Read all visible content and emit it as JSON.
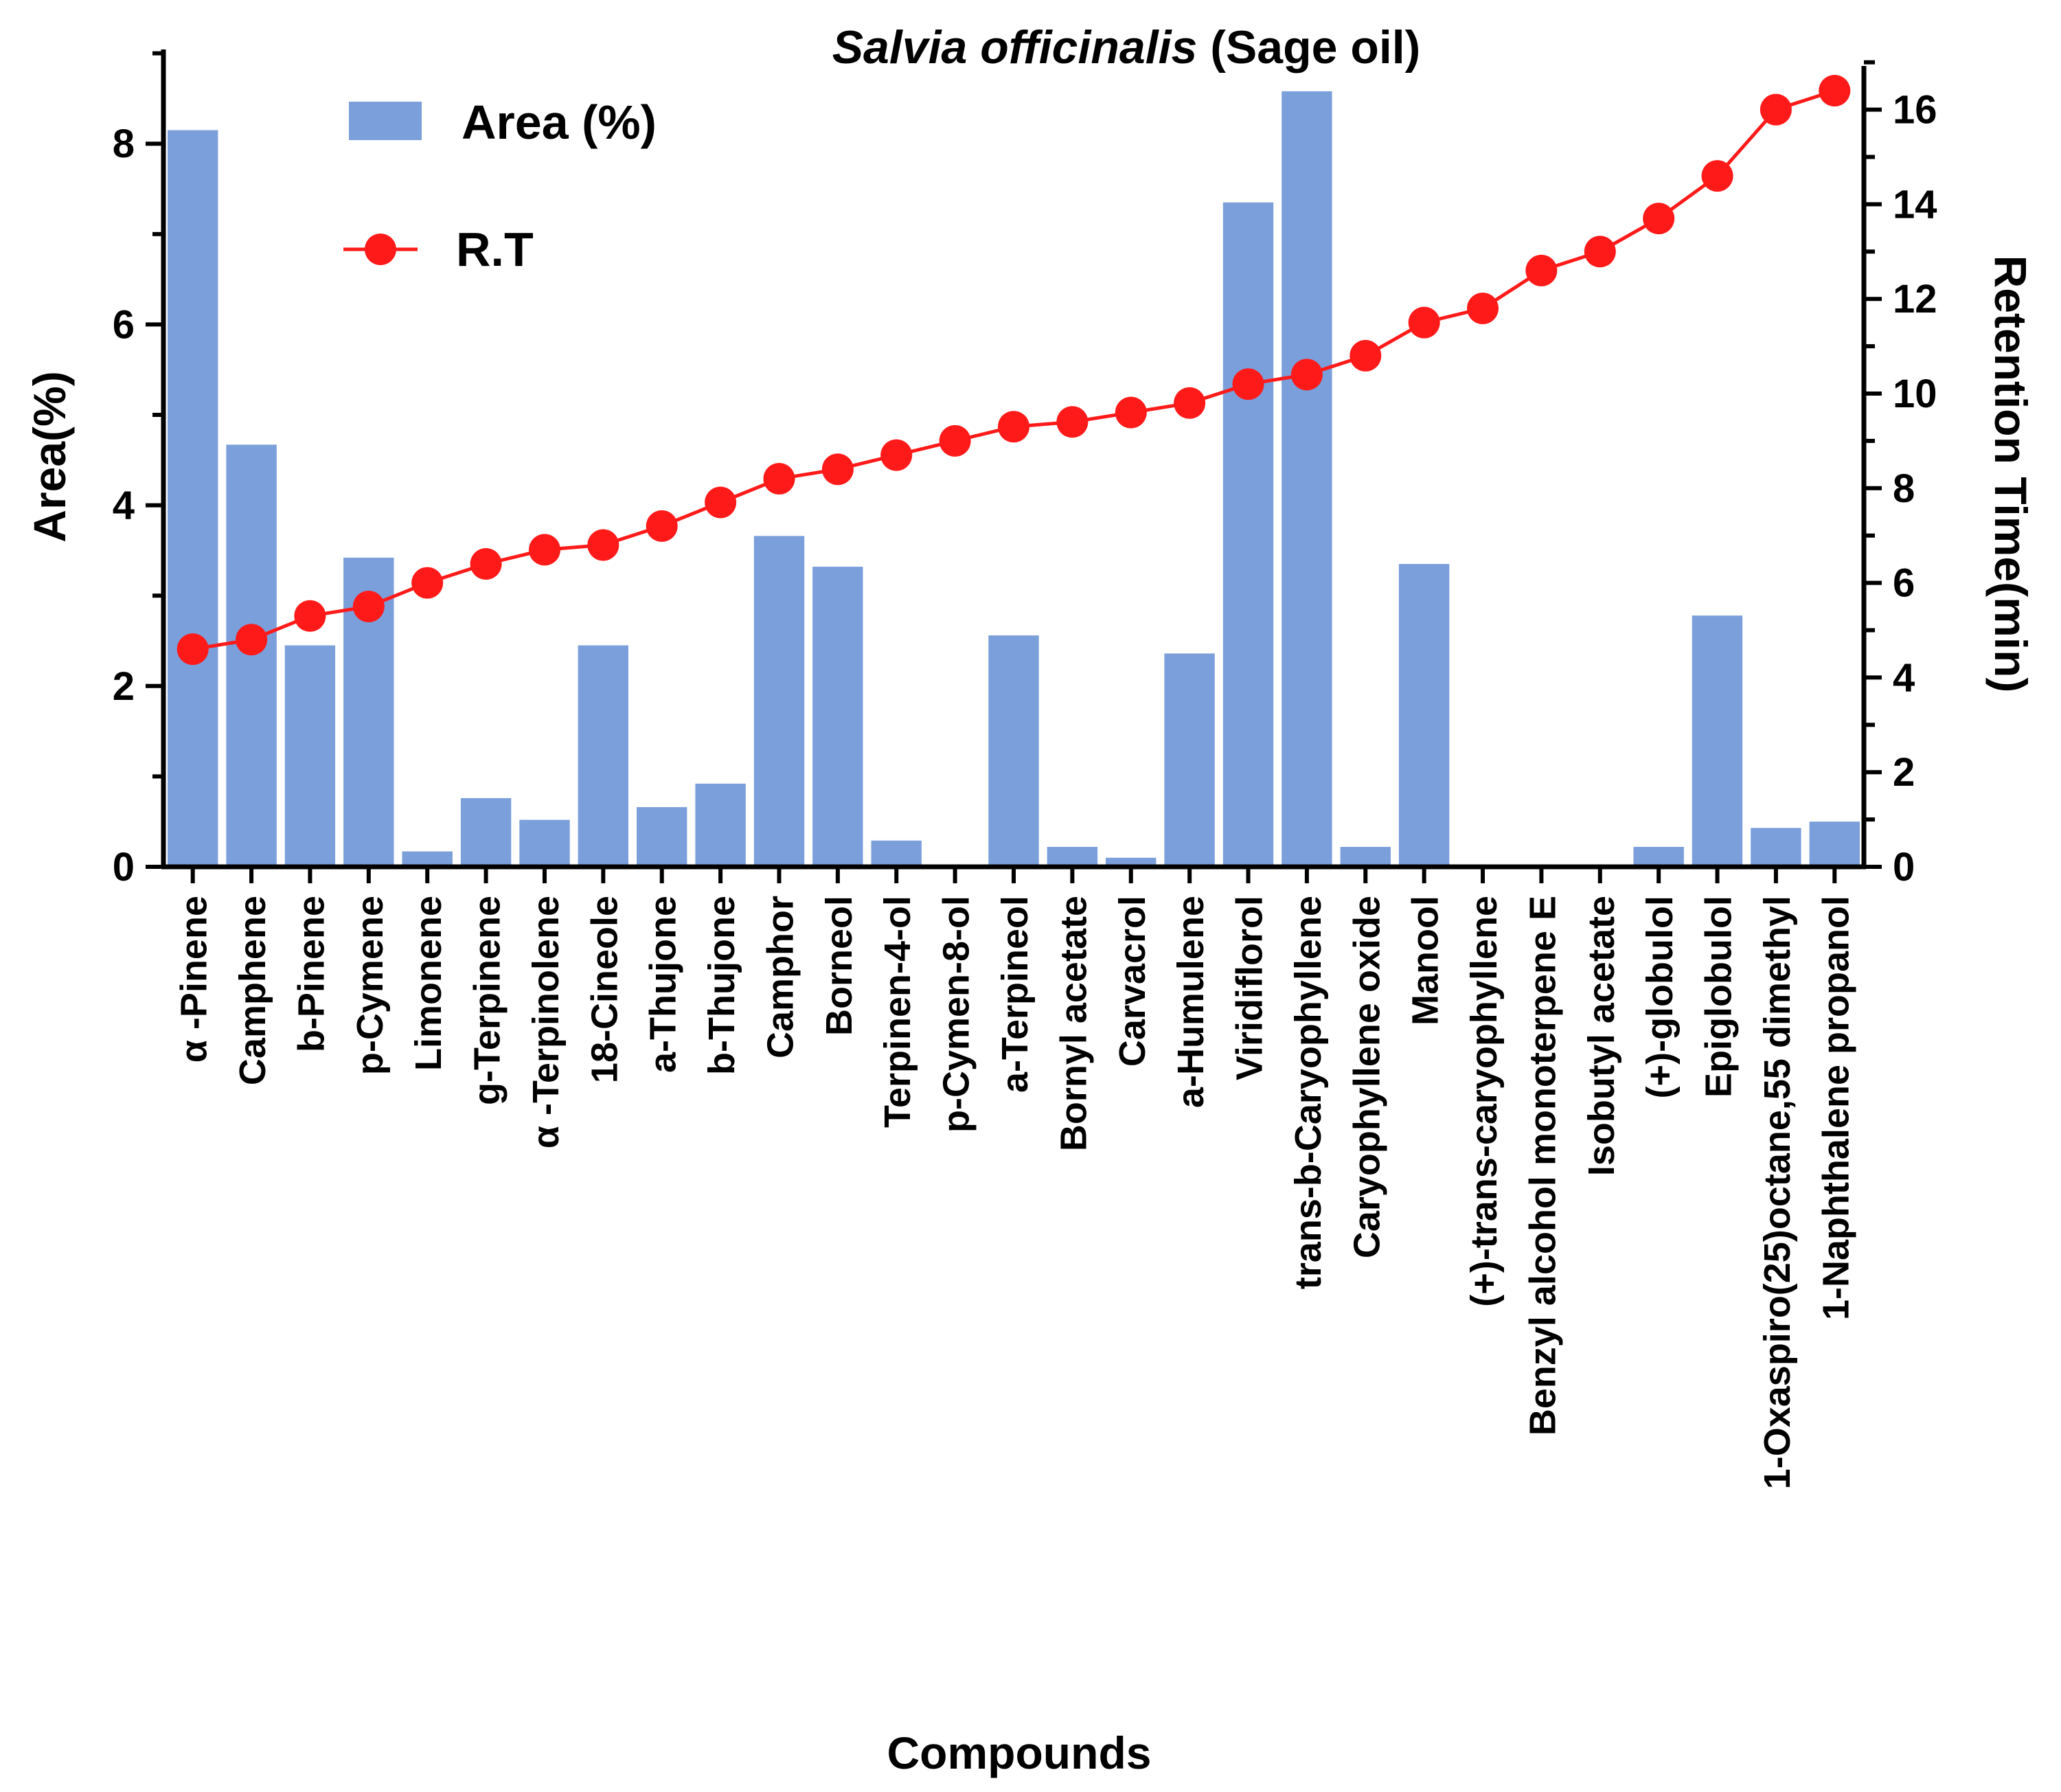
{
  "chart_data": {
    "type": "bar+line",
    "title_italic": "Salvia officinalis",
    "title_rest": " (Sage oil)",
    "xlabel": "Compounds",
    "ylabel_left": "Area(%)",
    "ylabel_right": "Retention Time(min)",
    "ylim_left": [
      0,
      9
    ],
    "ylim_right": [
      0,
      17
    ],
    "yticks_left": [
      0,
      2,
      4,
      6,
      8
    ],
    "yticks_right": [
      0,
      2,
      4,
      6,
      8,
      10,
      12,
      14,
      16
    ],
    "categories": [
      "α -Pinene",
      "Camphene",
      "b-Pinene",
      "p-Cymene",
      "Limonene",
      "g-Terpinene",
      "α -Terpinolene",
      "18-Cineole",
      "a-Thujone",
      "b-Thujone",
      "Camphor",
      "Borneol",
      "Terpinen-4-ol",
      "p-Cymen-8-ol",
      "a-Terpineol",
      "Bornyl acetate",
      "Carvacrol",
      "a-Humulene",
      "Viridiflorol",
      "trans-b-Caryophyllene",
      "Caryophyllene oxide",
      "Manool",
      "(+)-trans-caryophyllene",
      "Benzyl alcohol monoterpene E",
      "Isobutyl acetate",
      "(+)-globulol",
      "Epiglobulol",
      "1-Oxaspiro(25)octane,55 dimethyl",
      "1-Naphthalene propanol"
    ],
    "series": [
      {
        "name": "Area (%)",
        "type": "bar",
        "axis": "left",
        "color": "#7b9fdb",
        "values": [
          8.15,
          4.67,
          2.45,
          3.42,
          0.17,
          0.76,
          0.52,
          2.45,
          0.66,
          0.92,
          3.66,
          3.32,
          0.29,
          0.0,
          2.56,
          0.22,
          0.1,
          2.36,
          7.35,
          8.58,
          0.22,
          3.35,
          0.0,
          0.0,
          0.0,
          0.22,
          2.78,
          0.43,
          0.5
        ]
      },
      {
        "name": "R.T",
        "type": "line",
        "axis": "right",
        "color": "#ff1a1a",
        "values": [
          4.6,
          4.8,
          5.3,
          5.5,
          6.0,
          6.4,
          6.7,
          6.8,
          7.2,
          7.7,
          8.2,
          8.4,
          8.7,
          9.0,
          9.3,
          9.4,
          9.6,
          9.8,
          10.2,
          10.4,
          10.8,
          11.5,
          11.8,
          12.6,
          13.0,
          13.7,
          14.6,
          16.0,
          16.4
        ]
      }
    ],
    "legend": {
      "position": "top-left",
      "entries": [
        "Area (%)",
        "R.T"
      ]
    }
  }
}
